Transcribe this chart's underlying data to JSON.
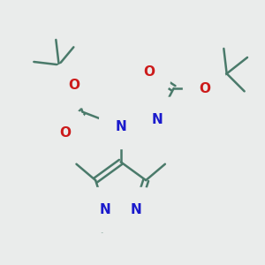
{
  "background_color": "#eaeceb",
  "bond_color": "#4a7a6a",
  "bond_width": 1.8,
  "atom_colors": {
    "N": "#1a1acc",
    "O": "#cc1a1a",
    "H": "#7aaa8a",
    "C": "#4a7a6a"
  },
  "figsize": [
    3.0,
    3.0
  ],
  "dpi": 100
}
